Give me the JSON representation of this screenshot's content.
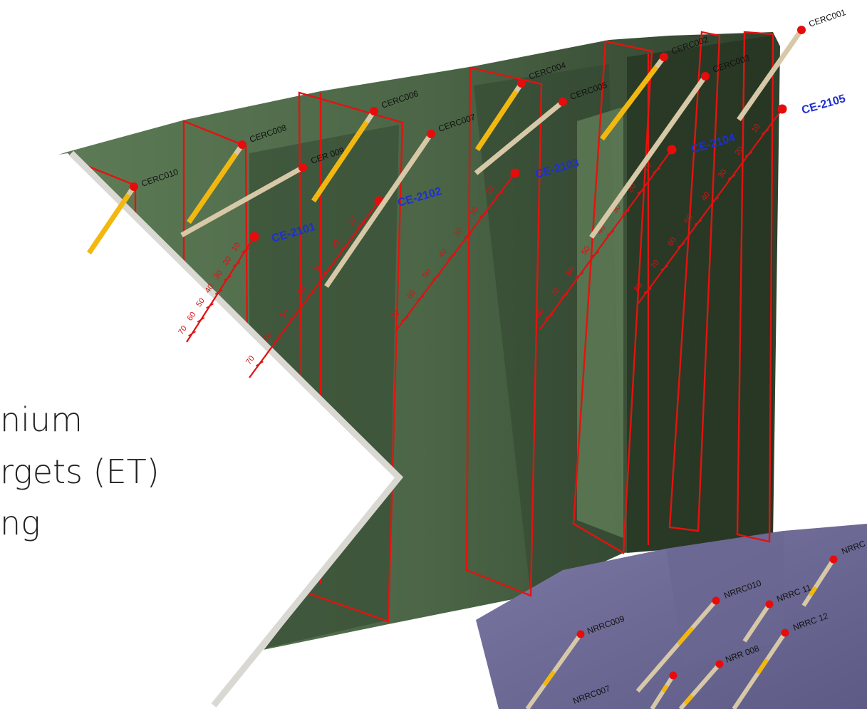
{
  "colors": {
    "green_light": "#5c7a56",
    "green_mid": "#4d6848",
    "green_dark": "#2e3e2b",
    "panel_red": "#e3130f",
    "trace_red": "#e01010",
    "core_tan": "#d7c9a7",
    "core_gold": "#f3b80e",
    "purple": "#6f6c96",
    "label_blue": "#1f2fd0",
    "chevron_white": "#ffffff"
  },
  "title_lines": [
    "nium",
    "rgets (ET)",
    "ng"
  ],
  "cerc_holes": [
    {
      "id": "cerc010",
      "label": "CERC010",
      "gold": true
    },
    {
      "id": "cerc009",
      "label": "CER 009",
      "gold": false
    },
    {
      "id": "cerc008",
      "label": "CERC008",
      "gold": true
    },
    {
      "id": "cerc007",
      "label": "CERC007",
      "gold": false
    },
    {
      "id": "cerc006",
      "label": "CERC006",
      "gold": true
    },
    {
      "id": "cerc005",
      "label": "CERC005",
      "gold": false
    },
    {
      "id": "cerc004",
      "label": "CERC004",
      "gold": true
    },
    {
      "id": "cerc003",
      "label": "CERC003",
      "gold": false
    },
    {
      "id": "cerc002",
      "label": "CERC002",
      "gold": true
    },
    {
      "id": "cerc001",
      "label": "CERC001",
      "gold": false
    }
  ],
  "ce_holes": [
    {
      "id": "ce2101",
      "label": "CE-2101",
      "depths": [
        "10",
        "20",
        "30",
        "40",
        "50",
        "60",
        "70"
      ]
    },
    {
      "id": "ce2102",
      "label": "CE-2102",
      "depths": [
        "10",
        "20",
        "30",
        "40",
        "50",
        "60",
        "70"
      ]
    },
    {
      "id": "ce2103",
      "label": "CE-2103",
      "depths": [
        "10",
        "20",
        "30",
        "40",
        "50",
        "60",
        "70"
      ]
    },
    {
      "id": "ce2104",
      "label": "CE-2104",
      "depths": [
        "10",
        "20",
        "30",
        "40",
        "50",
        "60",
        "70",
        "80"
      ]
    },
    {
      "id": "ce2105",
      "label": "CE-2105",
      "depths": [
        "10",
        "20",
        "30",
        "40",
        "50",
        "60",
        "70",
        "80"
      ]
    }
  ],
  "nrrc_holes": [
    {
      "id": "nrrc009",
      "label": "NRRC009"
    },
    {
      "id": "nrrc010",
      "label": "NRRC010"
    },
    {
      "id": "nrrc011",
      "label": "NRRC 11"
    },
    {
      "id": "nrrc012",
      "label": "NRRC 12"
    },
    {
      "id": "nrrc008",
      "label": "NRR 008"
    },
    {
      "id": "nrrc007",
      "label": "NRRC007"
    },
    {
      "id": "nrrc_edge",
      "label": "NRRC"
    }
  ]
}
